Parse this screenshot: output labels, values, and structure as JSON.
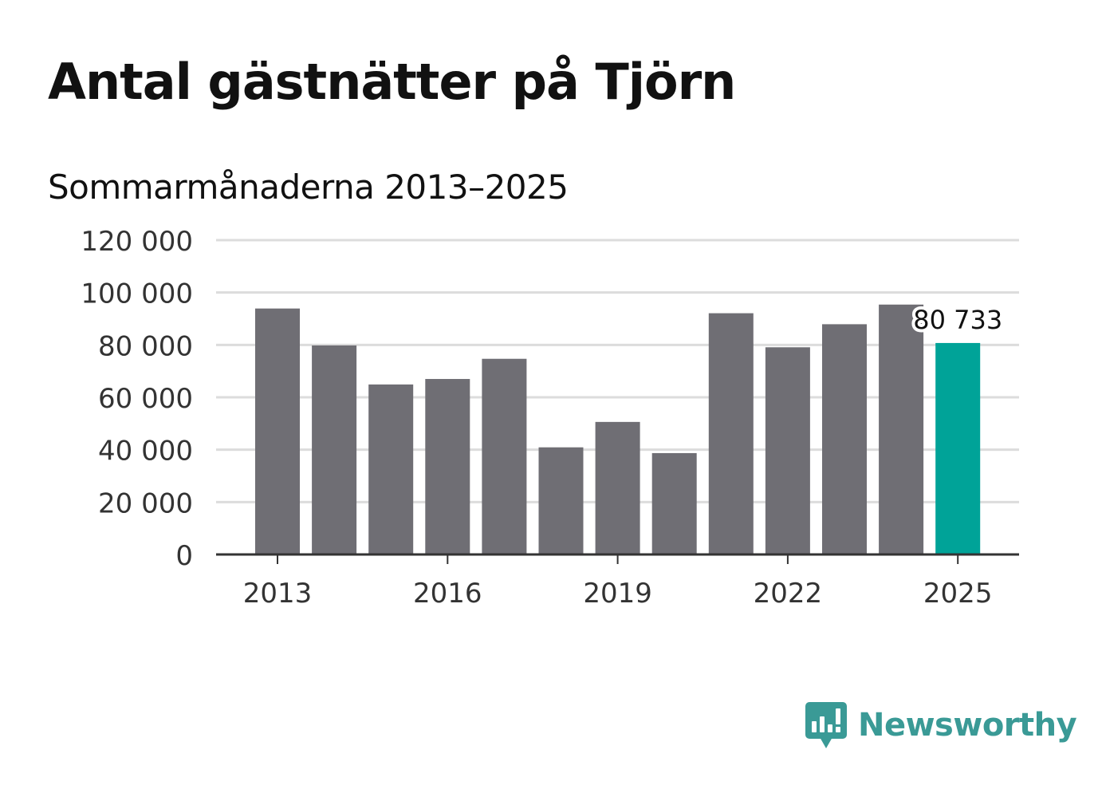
{
  "chart_data": {
    "type": "bar",
    "title": "Antal gästnätter på Tjörn",
    "subtitle": "Sommarmånaderna 2013–2025",
    "categories": [
      "2013",
      "2014",
      "2015",
      "2016",
      "2017",
      "2018",
      "2019",
      "2020",
      "2021",
      "2022",
      "2023",
      "2024",
      "2025"
    ],
    "values": [
      93900,
      79800,
      64900,
      67000,
      74700,
      40900,
      50600,
      38700,
      92100,
      79100,
      87900,
      95400,
      80733
    ],
    "ylim": [
      0,
      120000
    ],
    "yticks": [
      0,
      20000,
      40000,
      60000,
      80000,
      100000,
      120000
    ],
    "ytick_labels": [
      "0",
      "20 000",
      "40 000",
      "60 000",
      "80 000",
      "100 000",
      "120 000"
    ],
    "xticks_shown": [
      "2013",
      "2016",
      "2019",
      "2022",
      "2025"
    ],
    "highlight_index": 12,
    "highlight_label": "80 733",
    "grid": true,
    "xlabel": "",
    "ylabel": "",
    "colors": {
      "bar": "#6f6e74",
      "highlight": "#00a398",
      "grid": "#dcdcdc",
      "axis": "#333333",
      "text": "#333333"
    }
  },
  "brand": {
    "name": "Newsworthy",
    "logo_icon": "newsworthy-logo-icon",
    "color": "#3a9a96"
  }
}
